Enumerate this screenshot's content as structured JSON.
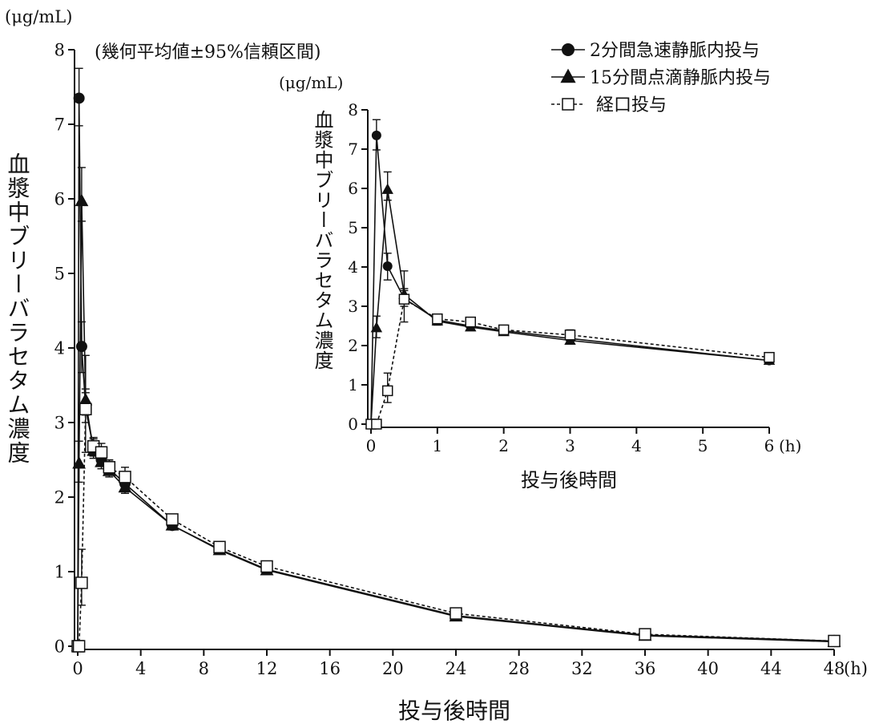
{
  "chart_data": [
    {
      "type": "line",
      "title": "(幾何平均値±95%信頼区間)",
      "unit_label": "(μg/mL)",
      "ylabel": "血漿中ブリーバラセタム濃度",
      "xlabel": "投与後時間",
      "x_unit": "(h)",
      "xlim": [
        0,
        48
      ],
      "ylim": [
        0,
        8
      ],
      "xticks": [
        0,
        4,
        8,
        12,
        16,
        20,
        24,
        28,
        32,
        36,
        40,
        44,
        48
      ],
      "yticks": [
        0,
        1,
        2,
        3,
        4,
        5,
        6,
        7,
        8
      ],
      "legend_position": "top-right",
      "series": [
        {
          "name": "2分間急速静脈内投与",
          "marker": "circle",
          "dash": "solid",
          "x": [
            0,
            0.083,
            0.25,
            0.5,
            1,
            1.5,
            2,
            3,
            6,
            9,
            12,
            24,
            36,
            48
          ],
          "y": [
            0,
            7.35,
            4.02,
            3.2,
            2.65,
            2.5,
            2.38,
            2.18,
            1.62,
            1.3,
            1.03,
            0.41,
            0.15,
            0.07
          ],
          "err_low": [
            0,
            6.98,
            3.67,
            3.0,
            2.55,
            2.42,
            2.3,
            2.1,
            1.57,
            1.26,
            1.0,
            0.38,
            0.13,
            0.06
          ],
          "err_high": [
            0,
            7.75,
            4.35,
            3.4,
            2.78,
            2.6,
            2.48,
            2.3,
            1.7,
            1.36,
            1.08,
            0.45,
            0.18,
            0.09
          ]
        },
        {
          "name": "15分間点滴静脈内投与",
          "marker": "triangle",
          "dash": "solid",
          "x": [
            0,
            0.083,
            0.25,
            0.5,
            1,
            1.5,
            2,
            3,
            6,
            9,
            12,
            24,
            36,
            48
          ],
          "y": [
            0,
            2.45,
            5.97,
            3.3,
            2.62,
            2.47,
            2.35,
            2.13,
            1.62,
            1.29,
            1.02,
            0.4,
            0.14,
            0.06
          ],
          "err_low": [
            0,
            2.2,
            5.7,
            3.1,
            2.52,
            2.38,
            2.27,
            2.05,
            1.56,
            1.25,
            0.98,
            0.37,
            0.12,
            0.05
          ],
          "err_high": [
            0,
            2.75,
            6.42,
            3.45,
            2.75,
            2.57,
            2.44,
            2.22,
            1.68,
            1.34,
            1.07,
            0.44,
            0.17,
            0.08
          ]
        },
        {
          "name": "経口投与",
          "marker": "square",
          "dash": "dotted",
          "x": [
            0,
            0.083,
            0.25,
            0.5,
            1,
            1.5,
            2,
            3,
            6,
            9,
            12,
            24,
            36,
            48
          ],
          "y": [
            0,
            0,
            0.85,
            3.18,
            2.68,
            2.6,
            2.4,
            2.27,
            1.7,
            1.33,
            1.07,
            0.44,
            0.16,
            0.07
          ],
          "err_low": [
            0,
            0,
            0.55,
            2.6,
            2.55,
            2.5,
            2.3,
            2.15,
            1.63,
            1.28,
            1.02,
            0.4,
            0.14,
            0.06
          ],
          "err_high": [
            0,
            0,
            1.3,
            3.9,
            2.8,
            2.72,
            2.5,
            2.4,
            1.77,
            1.38,
            1.12,
            0.48,
            0.19,
            0.09
          ]
        }
      ]
    },
    {
      "type": "line",
      "title": "inset",
      "unit_label": "(μg/mL)",
      "ylabel": "血漿中ブリーバラセタム濃度",
      "xlabel": "投与後時間",
      "x_unit": "(h)",
      "xlim": [
        0,
        6
      ],
      "ylim": [
        0,
        8
      ],
      "xticks": [
        0,
        1,
        2,
        3,
        4,
        5,
        6
      ],
      "yticks": [
        0,
        1,
        2,
        3,
        4,
        5,
        6,
        7,
        8
      ],
      "series_ref": "same as main chart, x ≤ 6"
    }
  ]
}
